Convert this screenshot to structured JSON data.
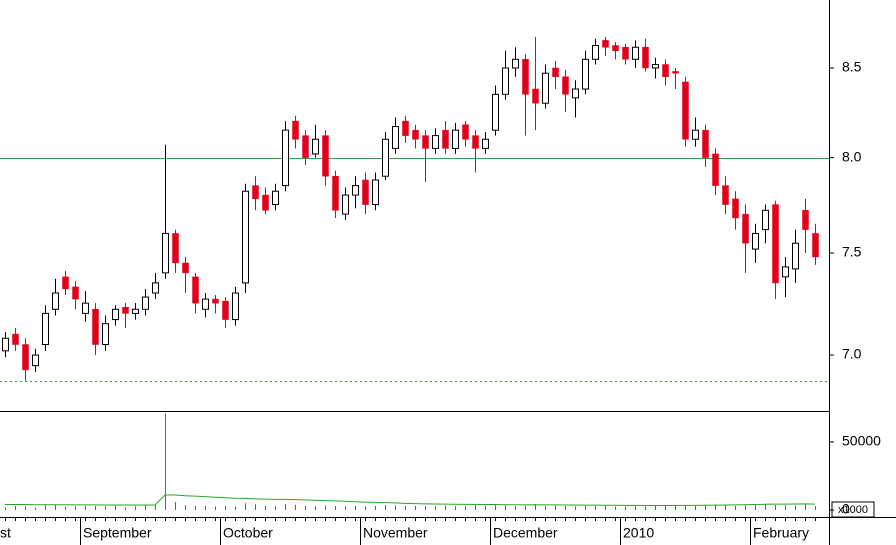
{
  "chart_data": {
    "type": "candlestick",
    "categories": [
      "st",
      null,
      null,
      null,
      null,
      null,
      null,
      null,
      "September",
      null,
      null,
      null,
      null,
      null,
      null,
      null,
      null,
      null,
      null,
      null,
      null,
      null,
      "October",
      null,
      null,
      null,
      null,
      null,
      null,
      null,
      null,
      null,
      null,
      null,
      null,
      null,
      "November",
      null,
      null,
      null,
      null,
      null,
      null,
      null,
      null,
      null,
      null,
      null,
      null,
      "December",
      null,
      null,
      null,
      null,
      null,
      null,
      null,
      null,
      null,
      null,
      null,
      null,
      "2010",
      null,
      null,
      null,
      null,
      null,
      null,
      null,
      null,
      null,
      null,
      null,
      null,
      "February",
      null,
      null,
      null,
      null,
      null,
      null
    ],
    "open": [
      7.02,
      7.1,
      7.05,
      6.95,
      7.05,
      7.22,
      7.38,
      7.33,
      7.2,
      7.22,
      7.05,
      7.17,
      7.23,
      7.2,
      7.22,
      7.3,
      7.4,
      7.6,
      7.45,
      7.38,
      7.22,
      7.27,
      7.26,
      7.17,
      7.35,
      7.85,
      7.8,
      7.75,
      7.85,
      8.2,
      8.12,
      8.02,
      8.12,
      7.9,
      7.7,
      7.8,
      7.88,
      7.75,
      7.9,
      8.05,
      8.2,
      8.15,
      8.12,
      8.05,
      8.15,
      8.05,
      8.18,
      8.12,
      8.05,
      8.15,
      8.35,
      8.5,
      8.55,
      8.38,
      8.3,
      8.5,
      8.45,
      8.33,
      8.38,
      8.55,
      8.66,
      8.63,
      8.62,
      8.55,
      8.62,
      8.5,
      8.52,
      8.48,
      8.42,
      8.1,
      8.15,
      8.02,
      7.85,
      7.78,
      7.7,
      7.52,
      7.62,
      7.75,
      7.38,
      7.42,
      7.72,
      7.6
    ],
    "high": [
      7.11,
      7.13,
      7.08,
      7.03,
      7.24,
      7.37,
      7.41,
      7.36,
      7.31,
      7.25,
      7.19,
      7.24,
      7.25,
      7.25,
      7.32,
      7.4,
      8.07,
      7.62,
      7.48,
      7.4,
      7.3,
      7.29,
      7.28,
      7.33,
      7.86,
      7.9,
      7.84,
      7.86,
      8.2,
      8.23,
      8.15,
      8.18,
      8.15,
      7.93,
      7.84,
      7.9,
      7.92,
      7.92,
      8.14,
      8.22,
      8.23,
      8.18,
      8.15,
      8.16,
      8.2,
      8.19,
      8.2,
      8.15,
      8.14,
      8.4,
      8.6,
      8.62,
      8.58,
      8.68,
      8.52,
      8.54,
      8.49,
      8.43,
      8.6,
      8.67,
      8.68,
      8.65,
      8.64,
      8.66,
      8.67,
      8.56,
      8.55,
      8.5,
      8.45,
      8.22,
      8.18,
      8.05,
      7.9,
      7.82,
      7.75,
      7.65,
      7.75,
      7.77,
      7.48,
      7.62,
      7.78,
      7.65
    ],
    "low": [
      6.99,
      7.02,
      6.88,
      6.92,
      7.02,
      7.19,
      7.29,
      7.22,
      7.16,
      7.0,
      7.02,
      7.14,
      7.13,
      7.17,
      7.19,
      7.27,
      7.37,
      7.4,
      7.3,
      7.2,
      7.18,
      7.2,
      7.13,
      7.14,
      7.3,
      7.72,
      7.7,
      7.72,
      7.82,
      8.05,
      7.96,
      8.0,
      7.85,
      7.68,
      7.67,
      7.73,
      7.7,
      7.72,
      7.88,
      8.02,
      8.08,
      8.05,
      7.87,
      8.02,
      8.02,
      8.02,
      8.06,
      7.92,
      8.02,
      8.12,
      8.32,
      8.45,
      8.12,
      8.15,
      8.27,
      8.38,
      8.25,
      8.22,
      8.35,
      8.52,
      8.57,
      8.55,
      8.52,
      8.5,
      8.48,
      8.44,
      8.4,
      8.38,
      8.06,
      8.06,
      7.95,
      7.8,
      7.7,
      7.62,
      7.4,
      7.45,
      7.55,
      7.27,
      7.28,
      7.35,
      7.5,
      7.44
    ],
    "close": [
      7.08,
      7.05,
      6.93,
      7.0,
      7.2,
      7.3,
      7.32,
      7.27,
      7.25,
      7.05,
      7.15,
      7.22,
      7.2,
      7.22,
      7.28,
      7.35,
      7.6,
      7.45,
      7.4,
      7.25,
      7.27,
      7.25,
      7.17,
      7.3,
      7.82,
      7.78,
      7.72,
      7.82,
      8.15,
      8.1,
      8.0,
      8.1,
      7.9,
      7.72,
      7.8,
      7.85,
      7.75,
      7.88,
      8.1,
      8.17,
      8.12,
      8.1,
      8.05,
      8.12,
      8.05,
      8.15,
      8.1,
      8.05,
      8.1,
      8.35,
      8.5,
      8.55,
      8.35,
      8.3,
      8.47,
      8.45,
      8.35,
      8.38,
      8.55,
      8.63,
      8.62,
      8.6,
      8.55,
      8.62,
      8.5,
      8.52,
      8.45,
      8.47,
      8.1,
      8.15,
      8.0,
      7.85,
      7.75,
      7.68,
      7.55,
      7.6,
      7.72,
      7.35,
      7.43,
      7.55,
      7.62,
      7.48
    ],
    "up_color": "#ffffff",
    "down_color": "#e3001b",
    "ylim": [
      6.74,
      8.9
    ],
    "log_scale": true,
    "yticks": [
      {
        "value": 7,
        "label": "7.0"
      },
      7.5,
      {
        "value": 8,
        "label": "8.0"
      },
      8.5
    ],
    "reference_lines": [
      {
        "value": 8,
        "style": "solid"
      },
      {
        "value": 6.88,
        "style": "dotted"
      }
    ],
    "reference_color": "#3a9a4a",
    "volume": {
      "values": [
        2000,
        3000,
        2500,
        1800,
        3500,
        4000,
        2200,
        2600,
        3000,
        2800,
        2400,
        3100,
        2000,
        2700,
        3300,
        4200,
        71000,
        6000,
        3500,
        2800,
        3000,
        2600,
        3100,
        2400,
        5000,
        4200,
        3000,
        2700,
        4500,
        3800,
        3000,
        2600,
        3300,
        2900,
        2500,
        3100,
        2400,
        2800,
        3600,
        3400,
        2900,
        3000,
        2700,
        2500,
        3200,
        2800,
        2600,
        4000,
        3000,
        3500,
        3300,
        2800,
        3000,
        4500,
        2700,
        3200,
        2900,
        2600,
        3100,
        2800,
        3000,
        2400,
        2200,
        2600,
        2500,
        3000,
        3300,
        2800,
        3700,
        3200,
        3900,
        4100,
        3500,
        3000,
        3300,
        3800,
        4500,
        3700,
        3500,
        3400,
        4800,
        3000
      ],
      "color": "#c0392b",
      "ma": [
        4000,
        4000,
        4000,
        3900,
        3900,
        3900,
        3900,
        3800,
        3800,
        3800,
        3700,
        3700,
        3700,
        3700,
        3700,
        3700,
        11000,
        11000,
        10500,
        10200,
        9800,
        9400,
        9000,
        8600,
        8500,
        8200,
        8000,
        7800,
        7800,
        7600,
        7400,
        7200,
        6900,
        6700,
        6400,
        6100,
        5800,
        5600,
        5400,
        5200,
        4900,
        4700,
        4500,
        4400,
        4300,
        4200,
        4100,
        4100,
        4000,
        4000,
        3900,
        3900,
        3800,
        3900,
        3800,
        3800,
        3700,
        3700,
        3600,
        3600,
        3500,
        3500,
        3400,
        3400,
        3300,
        3300,
        3300,
        3300,
        3400,
        3400,
        3500,
        3600,
        3700,
        3800,
        3900,
        4000,
        4200,
        4300,
        4300,
        4400,
        4500,
        4300
      ],
      "ma_color": "#22aa22",
      "ylim": [
        0,
        72000
      ],
      "yticks": [
        0,
        50000
      ],
      "unit": "x1000"
    }
  }
}
